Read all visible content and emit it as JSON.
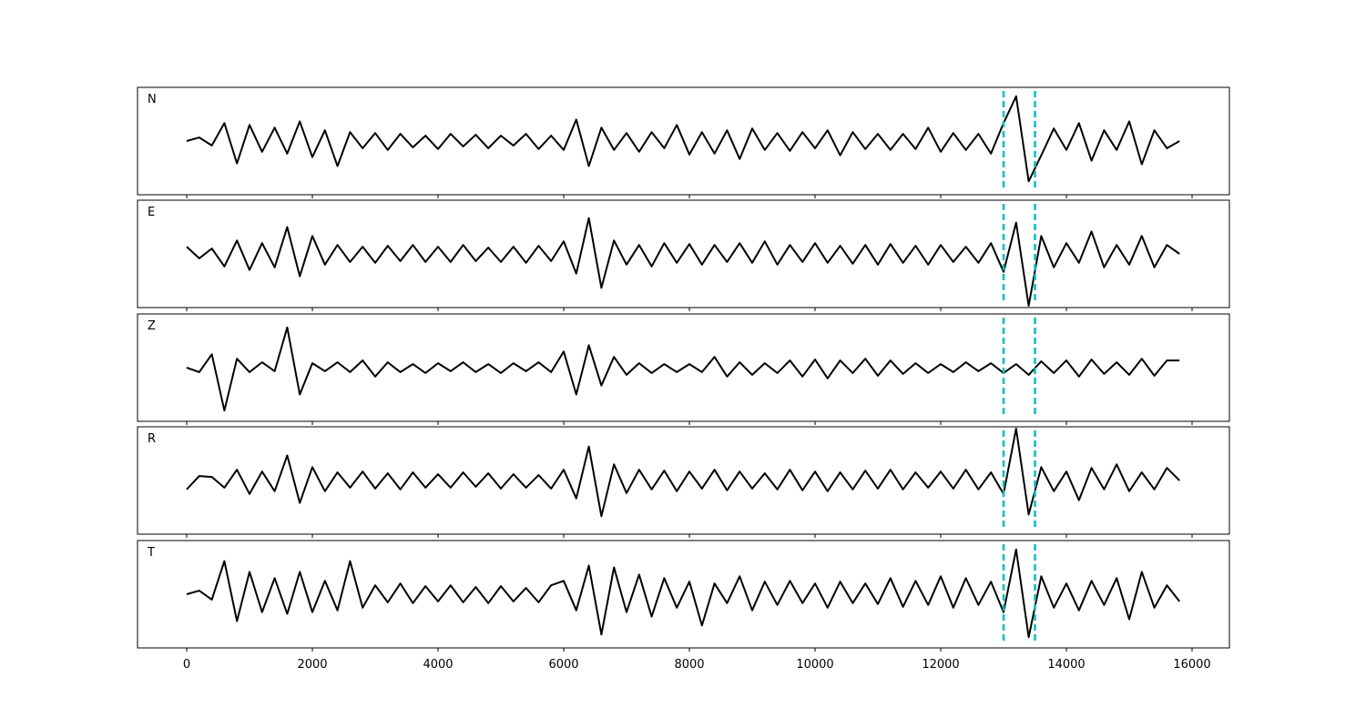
{
  "chart_data": [
    {
      "type": "line",
      "title": "N",
      "color": "#000000",
      "xlim": [
        -783,
        16594
      ],
      "ylim": [
        -60,
        60
      ],
      "xticks": [
        0,
        2000,
        4000,
        6000,
        8000,
        10000,
        12000,
        14000,
        16000
      ],
      "vlines": [
        13000,
        13500
      ],
      "vline_color": "#00bfbf",
      "x": [
        0,
        200,
        400,
        600,
        800,
        1000,
        1200,
        1400,
        1600,
        1800,
        2000,
        2200,
        2400,
        2600,
        2800,
        3000,
        3200,
        3400,
        3600,
        3800,
        4000,
        4200,
        4400,
        4600,
        4800,
        5000,
        5200,
        5400,
        5600,
        5800,
        6000,
        6200,
        6400,
        6600,
        6800,
        7000,
        7200,
        7400,
        7600,
        7800,
        8000,
        8200,
        8400,
        8600,
        8800,
        9000,
        9200,
        9400,
        9600,
        9800,
        10000,
        10200,
        10400,
        10600,
        10800,
        11000,
        11200,
        11400,
        11600,
        11800,
        12000,
        12200,
        12400,
        12600,
        12800,
        13000,
        13200,
        13400,
        13600,
        13800,
        14000,
        14200,
        14400,
        14600,
        14800,
        15000,
        15200,
        15400,
        15600,
        15800
      ],
      "values": [
        0,
        4,
        -5,
        20,
        -25,
        18,
        -12,
        15,
        -14,
        22,
        -18,
        12,
        -28,
        10,
        -8,
        9,
        -10,
        8,
        -7,
        6,
        -9,
        8,
        -6,
        7,
        -8,
        6,
        -5,
        8,
        -9,
        6,
        -10,
        24,
        -28,
        15,
        -10,
        9,
        -12,
        10,
        -8,
        18,
        -15,
        10,
        -14,
        12,
        -20,
        14,
        -10,
        9,
        -11,
        10,
        -8,
        12,
        -16,
        10,
        -9,
        8,
        -10,
        8,
        -9,
        15,
        -12,
        9,
        -10,
        8,
        -14,
        20,
        50,
        -45,
        -16,
        14,
        -10,
        20,
        -22,
        12,
        -10,
        22,
        -26,
        12,
        -8,
        0
      ]
    },
    {
      "type": "line",
      "title": "E",
      "color": "#000000",
      "xlim": [
        -783,
        16594
      ],
      "ylim": [
        -60,
        60
      ],
      "xticks": [
        0,
        2000,
        4000,
        6000,
        8000,
        10000,
        12000,
        14000,
        16000
      ],
      "vlines": [
        13000,
        13500
      ],
      "vline_color": "#00bfbf",
      "x": [
        0,
        200,
        400,
        600,
        800,
        1000,
        1200,
        1400,
        1600,
        1800,
        2000,
        2200,
        2400,
        2600,
        2800,
        3000,
        3200,
        3400,
        3600,
        3800,
        4000,
        4200,
        4400,
        4600,
        4800,
        5000,
        5200,
        5400,
        5600,
        5800,
        6000,
        6200,
        6400,
        6600,
        6800,
        7000,
        7200,
        7400,
        7600,
        7800,
        8000,
        8200,
        8400,
        8600,
        8800,
        9000,
        9200,
        9400,
        9600,
        9800,
        10000,
        10200,
        10400,
        10600,
        10800,
        11000,
        11200,
        11400,
        11600,
        11800,
        12000,
        12200,
        12400,
        12600,
        12800,
        13000,
        13200,
        13400,
        13600,
        13800,
        14000,
        14200,
        14400,
        14600,
        14800,
        15000,
        15200,
        15400,
        15600,
        15800
      ],
      "values": [
        8,
        -5,
        6,
        -14,
        15,
        -18,
        12,
        -15,
        30,
        -25,
        20,
        -12,
        10,
        -9,
        8,
        -10,
        9,
        -8,
        10,
        -9,
        8,
        -9,
        10,
        -8,
        7,
        -9,
        8,
        -10,
        9,
        -8,
        14,
        -22,
        40,
        -38,
        15,
        -12,
        10,
        -14,
        12,
        -10,
        11,
        -12,
        10,
        -9,
        12,
        -10,
        14,
        -12,
        10,
        -9,
        12,
        -10,
        9,
        -11,
        10,
        -12,
        11,
        -10,
        9,
        -12,
        10,
        -9,
        8,
        -10,
        12,
        -20,
        35,
        -58,
        20,
        -15,
        12,
        -10,
        25,
        -15,
        10,
        -12,
        20,
        -15,
        10,
        0
      ]
    },
    {
      "type": "line",
      "title": "Z",
      "color": "#000000",
      "xlim": [
        -783,
        16594
      ],
      "ylim": [
        -60,
        60
      ],
      "xticks": [
        0,
        2000,
        4000,
        6000,
        8000,
        10000,
        12000,
        14000,
        16000
      ],
      "vlines": [
        13000,
        13500
      ],
      "vline_color": "#00bfbf",
      "x": [
        0,
        200,
        400,
        600,
        800,
        1000,
        1200,
        1400,
        1600,
        1800,
        2000,
        2200,
        2400,
        2600,
        2800,
        3000,
        3200,
        3400,
        3600,
        3800,
        4000,
        4200,
        4400,
        4600,
        4800,
        5000,
        5200,
        5400,
        5600,
        5800,
        6000,
        6200,
        6400,
        6600,
        6800,
        7000,
        7200,
        7400,
        7600,
        7800,
        8000,
        8200,
        8400,
        8600,
        8800,
        9000,
        9200,
        9400,
        9600,
        9800,
        10000,
        10200,
        10400,
        10600,
        10800,
        11000,
        11200,
        11400,
        11600,
        11800,
        12000,
        12200,
        12400,
        12600,
        12800,
        13000,
        13200,
        13400,
        13600,
        13800,
        14000,
        14200,
        14400,
        14600,
        14800,
        15000,
        15200,
        15400,
        15600,
        15800
      ],
      "values": [
        0,
        -5,
        15,
        -48,
        10,
        -5,
        6,
        -4,
        45,
        -30,
        5,
        -4,
        6,
        -5,
        8,
        -10,
        6,
        -5,
        4,
        -6,
        5,
        -4,
        6,
        -5,
        4,
        -6,
        5,
        -4,
        6,
        -5,
        18,
        -30,
        25,
        -20,
        12,
        -8,
        5,
        -6,
        4,
        -5,
        4,
        -5,
        12,
        -10,
        6,
        -8,
        5,
        -6,
        8,
        -10,
        9,
        -12,
        8,
        -6,
        10,
        -9,
        8,
        -7,
        5,
        -6,
        4,
        -5,
        6,
        -4,
        5,
        -6,
        4,
        -8,
        7,
        -6,
        8,
        -10,
        9,
        -7,
        6,
        -8,
        10,
        -9,
        8,
        8
      ]
    },
    {
      "type": "line",
      "title": "R",
      "color": "#000000",
      "xlim": [
        -783,
        16594
      ],
      "ylim": [
        -60,
        60
      ],
      "xticks": [
        0,
        2000,
        4000,
        6000,
        8000,
        10000,
        12000,
        14000,
        16000
      ],
      "vlines": [
        13000,
        13500
      ],
      "vline_color": "#00bfbf",
      "x": [
        0,
        200,
        400,
        600,
        800,
        1000,
        1200,
        1400,
        1600,
        1800,
        2000,
        2200,
        2400,
        2600,
        2800,
        3000,
        3200,
        3400,
        3600,
        3800,
        4000,
        4200,
        4400,
        4600,
        4800,
        5000,
        5200,
        5400,
        5600,
        5800,
        6000,
        6200,
        6400,
        6600,
        6800,
        7000,
        7200,
        7400,
        7600,
        7800,
        8000,
        8200,
        8400,
        8600,
        8800,
        9000,
        9200,
        9400,
        9600,
        9800,
        10000,
        10200,
        10400,
        10600,
        10800,
        11000,
        11200,
        11400,
        11600,
        11800,
        12000,
        12200,
        12400,
        12600,
        12800,
        13000,
        13200,
        13400,
        13600,
        13800,
        14000,
        14200,
        14400,
        14600,
        14800,
        15000,
        15200,
        15400,
        15600,
        15800
      ],
      "values": [
        -10,
        5,
        4,
        -8,
        12,
        -15,
        10,
        -12,
        28,
        -25,
        15,
        -12,
        9,
        -8,
        10,
        -9,
        8,
        -10,
        9,
        -8,
        7,
        -8,
        9,
        -7,
        8,
        -9,
        7,
        -8,
        6,
        -9,
        12,
        -20,
        38,
        -40,
        18,
        -14,
        12,
        -10,
        11,
        -12,
        10,
        -9,
        12,
        -11,
        10,
        -9,
        8,
        -10,
        12,
        -11,
        10,
        -12,
        9,
        -10,
        11,
        -9,
        12,
        -10,
        9,
        -8,
        10,
        -9,
        12,
        -10,
        9,
        -15,
        58,
        -38,
        15,
        -12,
        10,
        -22,
        14,
        -10,
        18,
        -12,
        9,
        -10,
        14,
        0
      ]
    },
    {
      "type": "line",
      "title": "T",
      "color": "#000000",
      "xlim": [
        -783,
        16594
      ],
      "ylim": [
        -60,
        60
      ],
      "xticks": [
        0,
        2000,
        4000,
        6000,
        8000,
        10000,
        12000,
        14000,
        16000
      ],
      "vlines": [
        13000,
        13500
      ],
      "vline_color": "#00bfbf",
      "x": [
        0,
        200,
        400,
        600,
        800,
        1000,
        1200,
        1400,
        1600,
        1800,
        2000,
        2200,
        2400,
        2600,
        2800,
        3000,
        3200,
        3400,
        3600,
        3800,
        4000,
        4200,
        4400,
        4600,
        4800,
        5000,
        5200,
        5400,
        5600,
        5800,
        6000,
        6200,
        6400,
        6600,
        6800,
        7000,
        7200,
        7400,
        7600,
        7800,
        8000,
        8200,
        8400,
        8600,
        8800,
        9000,
        9200,
        9400,
        9600,
        9800,
        10000,
        10200,
        10400,
        10600,
        10800,
        11000,
        11200,
        11400,
        11600,
        11800,
        12000,
        12200,
        12400,
        12600,
        12800,
        13000,
        13200,
        13400,
        13600,
        13800,
        14000,
        14200,
        14400,
        14600,
        14800,
        15000,
        15200,
        15400,
        15600,
        15800
      ],
      "values": [
        0,
        4,
        -6,
        37,
        -30,
        25,
        -20,
        18,
        -22,
        25,
        -20,
        15,
        -18,
        37,
        -15,
        10,
        -9,
        12,
        -10,
        9,
        -8,
        10,
        -9,
        8,
        -10,
        9,
        -8,
        7,
        -9,
        10,
        15,
        -18,
        32,
        -45,
        30,
        -20,
        22,
        -25,
        18,
        -15,
        14,
        -35,
        12,
        -10,
        20,
        -18,
        14,
        -12,
        15,
        -10,
        12,
        -15,
        14,
        -10,
        12,
        -11,
        18,
        -14,
        15,
        -12,
        20,
        -15,
        18,
        -12,
        14,
        -20,
        50,
        -48,
        20,
        -15,
        12,
        -18,
        15,
        -12,
        18,
        -28,
        25,
        -15,
        10,
        -8
      ]
    }
  ]
}
